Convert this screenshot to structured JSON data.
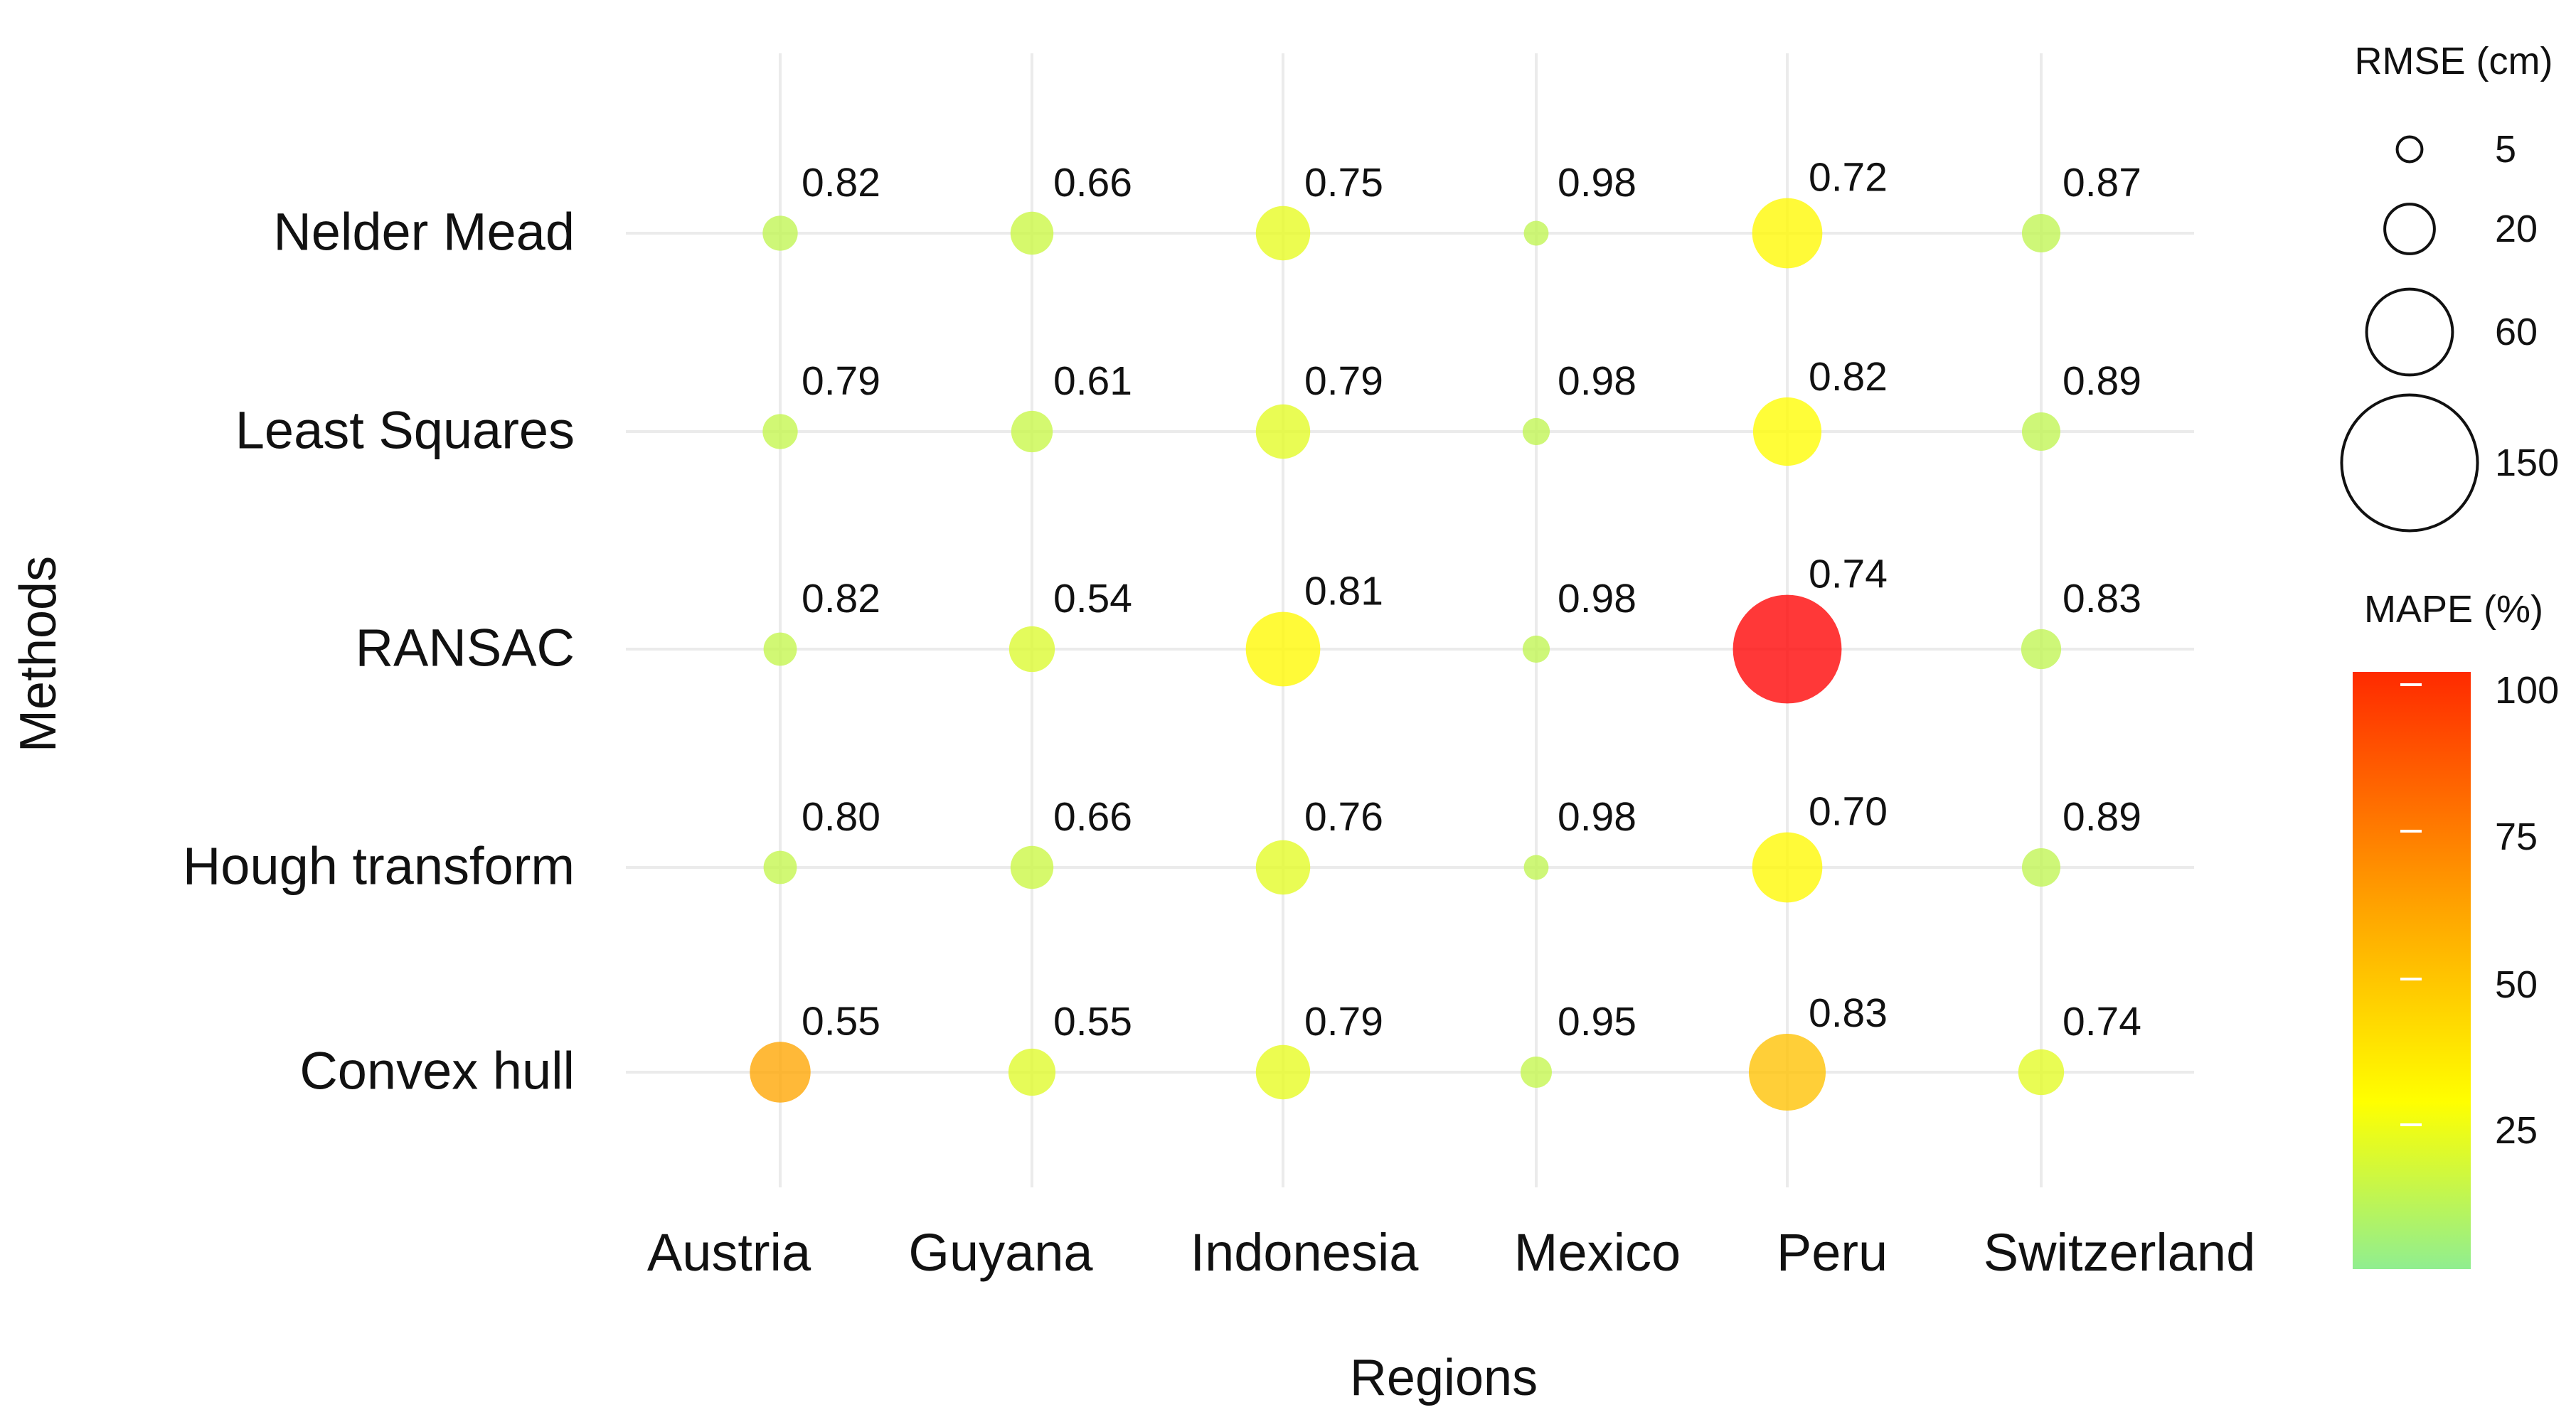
{
  "chart_data": {
    "type": "scatter",
    "title": "",
    "xlabel": "Regions",
    "ylabel": "Methods",
    "x_categories": [
      "Austria",
      "Guyana",
      "Indonesia",
      "Mexico",
      "Peru",
      "Switzerland"
    ],
    "y_categories": [
      "Nelder Mead",
      "Least Squares",
      "RANSAC",
      "Hough transform",
      "Convex hull"
    ],
    "grid": true,
    "points": [
      {
        "method": "Nelder Mead",
        "region": "Austria",
        "label": "0.82",
        "rmse": 10,
        "mape": 12
      },
      {
        "method": "Nelder Mead",
        "region": "Guyana",
        "label": "0.66",
        "rmse": 15,
        "mape": 15
      },
      {
        "method": "Nelder Mead",
        "region": "Indonesia",
        "label": "0.75",
        "rmse": 24,
        "mape": 22
      },
      {
        "method": "Nelder Mead",
        "region": "Mexico",
        "label": "0.98",
        "rmse": 5,
        "mape": 12
      },
      {
        "method": "Nelder Mead",
        "region": "Peru",
        "label": "0.72",
        "rmse": 40,
        "mape": 30
      },
      {
        "method": "Nelder Mead",
        "region": "Switzerland",
        "label": "0.87",
        "rmse": 12,
        "mape": 12
      },
      {
        "method": "Least Squares",
        "region": "Austria",
        "label": "0.79",
        "rmse": 10,
        "mape": 13
      },
      {
        "method": "Least Squares",
        "region": "Guyana",
        "label": "0.61",
        "rmse": 14,
        "mape": 14
      },
      {
        "method": "Least Squares",
        "region": "Indonesia",
        "label": "0.79",
        "rmse": 24,
        "mape": 21
      },
      {
        "method": "Least Squares",
        "region": "Mexico",
        "label": "0.98",
        "rmse": 6,
        "mape": 12
      },
      {
        "method": "Least Squares",
        "region": "Peru",
        "label": "0.82",
        "rmse": 38,
        "mape": 29
      },
      {
        "method": "Least Squares",
        "region": "Switzerland",
        "label": "0.89",
        "rmse": 12,
        "mape": 12
      },
      {
        "method": "RANSAC",
        "region": "Austria",
        "label": "0.82",
        "rmse": 9,
        "mape": 13
      },
      {
        "method": "RANSAC",
        "region": "Guyana",
        "label": "0.54",
        "rmse": 17,
        "mape": 19
      },
      {
        "method": "RANSAC",
        "region": "Indonesia",
        "label": "0.81",
        "rmse": 45,
        "mape": 30
      },
      {
        "method": "RANSAC",
        "region": "Mexico",
        "label": "0.98",
        "rmse": 6,
        "mape": 12
      },
      {
        "method": "RANSAC",
        "region": "Peru",
        "label": "0.74",
        "rmse": 96,
        "mape": 100
      },
      {
        "method": "RANSAC",
        "region": "Switzerland",
        "label": "0.83",
        "rmse": 13,
        "mape": 12
      },
      {
        "method": "Hough transform",
        "region": "Austria",
        "label": "0.80",
        "rmse": 9,
        "mape": 13
      },
      {
        "method": "Hough transform",
        "region": "Guyana",
        "label": "0.66",
        "rmse": 15,
        "mape": 15
      },
      {
        "method": "Hough transform",
        "region": "Indonesia",
        "label": "0.76",
        "rmse": 24,
        "mape": 21
      },
      {
        "method": "Hough transform",
        "region": "Mexico",
        "label": "0.98",
        "rmse": 5,
        "mape": 12
      },
      {
        "method": "Hough transform",
        "region": "Peru",
        "label": "0.70",
        "rmse": 40,
        "mape": 30
      },
      {
        "method": "Hough transform",
        "region": "Switzerland",
        "label": "0.89",
        "rmse": 12,
        "mape": 12
      },
      {
        "method": "Convex hull",
        "region": "Austria",
        "label": "0.55",
        "rmse": 30,
        "mape": 60
      },
      {
        "method": "Convex hull",
        "region": "Guyana",
        "label": "0.55",
        "rmse": 18,
        "mape": 20
      },
      {
        "method": "Convex hull",
        "region": "Indonesia",
        "label": "0.79",
        "rmse": 24,
        "mape": 22
      },
      {
        "method": "Convex hull",
        "region": "Mexico",
        "label": "0.95",
        "rmse": 8,
        "mape": 13
      },
      {
        "method": "Convex hull",
        "region": "Peru",
        "label": "0.83",
        "rmse": 48,
        "mape": 50
      },
      {
        "method": "Convex hull",
        "region": "Switzerland",
        "label": "0.74",
        "rmse": 17,
        "mape": 21
      }
    ],
    "size_legend": {
      "title": "RMSE (cm)",
      "values": [
        5,
        20,
        60,
        150
      ]
    },
    "color_legend": {
      "title": "MAPE (%)",
      "ticks": [
        25,
        50,
        75,
        100
      ],
      "range": [
        0,
        100
      ],
      "colors": [
        "#90ee90",
        "#ffff00",
        "#ffa500",
        "#ff0000"
      ]
    }
  }
}
